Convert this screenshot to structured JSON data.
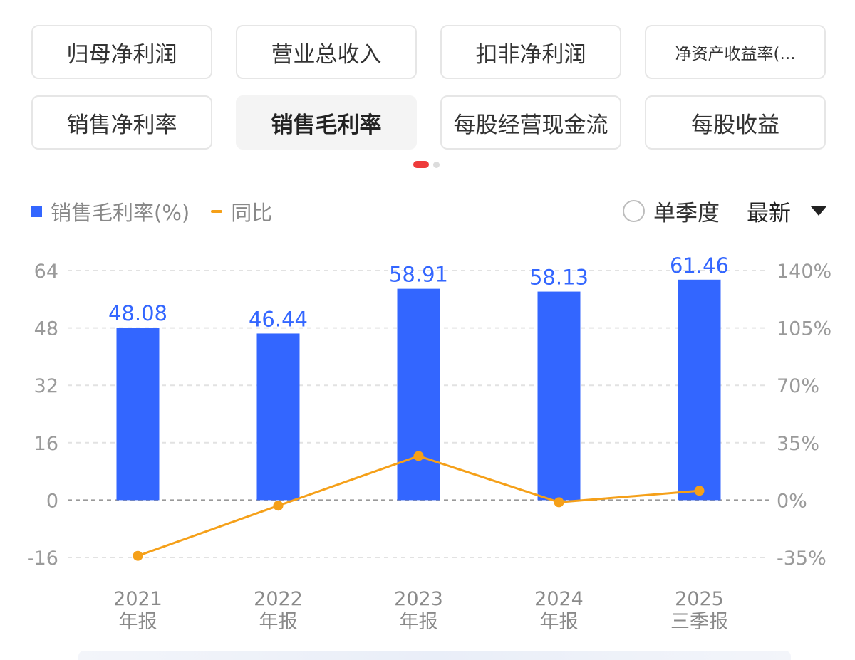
{
  "tabs": [
    {
      "label": "归母净利润"
    },
    {
      "label": "营业总收入"
    },
    {
      "label": "扣非净利润"
    },
    {
      "label": "净资产收益率(..."
    },
    {
      "label": "销售净利率"
    },
    {
      "label": "销售毛利率"
    },
    {
      "label": "每股经营现金流"
    },
    {
      "label": "每股收益"
    }
  ],
  "legend": {
    "bar_label": "销售毛利率(%)",
    "line_label": "同比"
  },
  "controls": {
    "quarter_label": "单季度",
    "latest_label": "最新"
  },
  "colors": {
    "bar": "#3366ff",
    "line": "#f5a019",
    "active_dot": "#ee3b3b"
  },
  "chart_data": {
    "type": "bar",
    "categories": [
      {
        "year": "2021",
        "period": "年报"
      },
      {
        "year": "2022",
        "period": "年报"
      },
      {
        "year": "2023",
        "period": "年报"
      },
      {
        "year": "2024",
        "period": "年报"
      },
      {
        "year": "2025",
        "period": "三季报"
      }
    ],
    "series": [
      {
        "name": "销售毛利率(%)",
        "type": "bar",
        "axis": "left",
        "values": [
          48.08,
          46.44,
          58.91,
          58.13,
          61.46
        ],
        "labels": [
          "48.08",
          "46.44",
          "58.91",
          "58.13",
          "61.46"
        ]
      },
      {
        "name": "同比",
        "type": "line",
        "axis": "right",
        "values": [
          -34.0,
          -3.4,
          26.9,
          -1.3,
          5.7
        ]
      }
    ],
    "y_left": {
      "ticks": [
        64,
        48,
        32,
        16,
        0,
        -16
      ],
      "labels": [
        "64",
        "48",
        "32",
        "16",
        "0",
        "-16"
      ],
      "lim": [
        -16,
        64
      ]
    },
    "y_right": {
      "ticks": [
        140,
        105,
        70,
        35,
        0,
        -35
      ],
      "labels": [
        "140%",
        "105%",
        "70%",
        "35%",
        "0%",
        "-35%"
      ],
      "lim": [
        -35,
        140
      ]
    },
    "grid": true
  }
}
